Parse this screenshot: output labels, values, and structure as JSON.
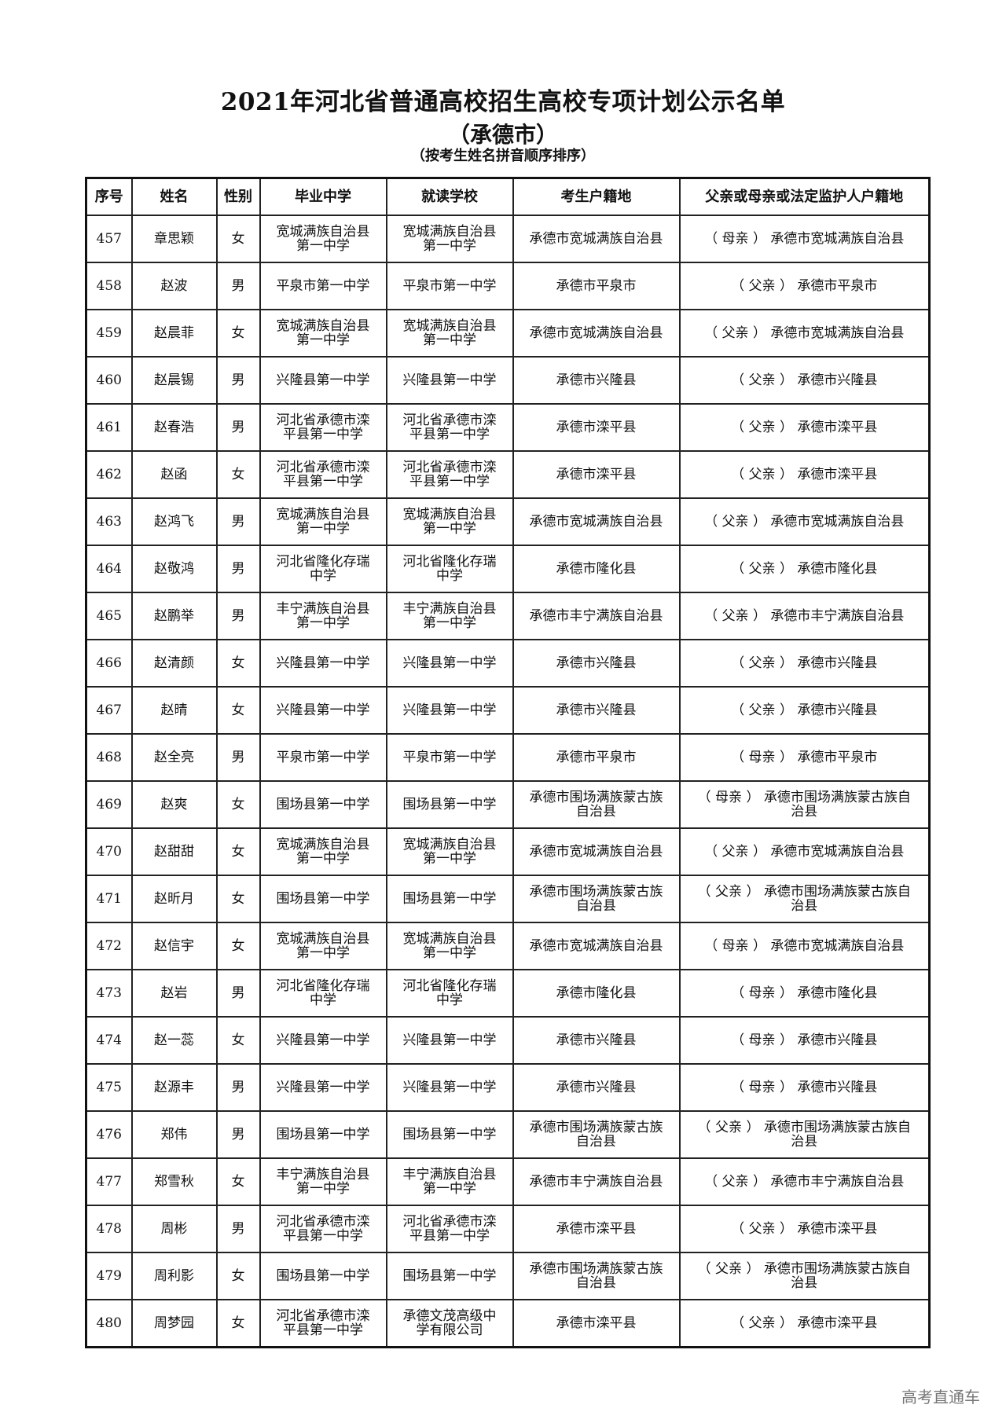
{
  "document": {
    "title": "2021年河北省普通高校招生高校专项计划公示名单",
    "subtitle": "（承德市）",
    "note": "（按考生姓名拼音顺序排序）",
    "watermark": "高考直通车"
  },
  "table": {
    "headers": [
      "序号",
      "姓名",
      "性别",
      "毕业中学",
      "就读学校",
      "考生户籍地",
      "父亲或母亲或法定监护人户籍地"
    ],
    "rows": [
      [
        "457",
        "章思颖",
        "女",
        "宽城满族自治县\n第一中学",
        "宽城满族自治县\n第一中学",
        "承德市宽城满族自治县",
        "（ 母亲 ） 承德市宽城满族自治县"
      ],
      [
        "458",
        "赵波",
        "男",
        "平泉市第一中学",
        "平泉市第一中学",
        "承德市平泉市",
        "（ 父亲 ） 承德市平泉市"
      ],
      [
        "459",
        "赵晨菲",
        "女",
        "宽城满族自治县\n第一中学",
        "宽城满族自治县\n第一中学",
        "承德市宽城满族自治县",
        "（ 父亲 ） 承德市宽城满族自治县"
      ],
      [
        "460",
        "赵晨锡",
        "男",
        "兴隆县第一中学",
        "兴隆县第一中学",
        "承德市兴隆县",
        "（ 父亲 ） 承德市兴隆县"
      ],
      [
        "461",
        "赵春浩",
        "男",
        "河北省承德市滦\n平县第一中学",
        "河北省承德市滦\n平县第一中学",
        "承德市滦平县",
        "（ 父亲 ） 承德市滦平县"
      ],
      [
        "462",
        "赵函",
        "女",
        "河北省承德市滦\n平县第一中学",
        "河北省承德市滦\n平县第一中学",
        "承德市滦平县",
        "（ 父亲 ） 承德市滦平县"
      ],
      [
        "463",
        "赵鸿飞",
        "男",
        "宽城满族自治县\n第一中学",
        "宽城满族自治县\n第一中学",
        "承德市宽城满族自治县",
        "（ 父亲 ） 承德市宽城满族自治县"
      ],
      [
        "464",
        "赵敬鸿",
        "男",
        "河北省隆化存瑞\n中学",
        "河北省隆化存瑞\n中学",
        "承德市隆化县",
        "（ 父亲 ） 承德市隆化县"
      ],
      [
        "465",
        "赵鹏举",
        "男",
        "丰宁满族自治县\n第一中学",
        "丰宁满族自治县\n第一中学",
        "承德市丰宁满族自治县",
        "（ 父亲 ） 承德市丰宁满族自治县"
      ],
      [
        "466",
        "赵清颜",
        "女",
        "兴隆县第一中学",
        "兴隆县第一中学",
        "承德市兴隆县",
        "（ 父亲 ） 承德市兴隆县"
      ],
      [
        "467",
        "赵晴",
        "女",
        "兴隆县第一中学",
        "兴隆县第一中学",
        "承德市兴隆县",
        "（ 父亲 ） 承德市兴隆县"
      ],
      [
        "468",
        "赵全亮",
        "男",
        "平泉市第一中学",
        "平泉市第一中学",
        "承德市平泉市",
        "（ 母亲 ） 承德市平泉市"
      ],
      [
        "469",
        "赵爽",
        "女",
        "围场县第一中学",
        "围场县第一中学",
        "承德市围场满族蒙古族\n自治县",
        "（ 母亲 ） 承德市围场满族蒙古族自\n治县"
      ],
      [
        "470",
        "赵甜甜",
        "女",
        "宽城满族自治县\n第一中学",
        "宽城满族自治县\n第一中学",
        "承德市宽城满族自治县",
        "（ 父亲 ） 承德市宽城满族自治县"
      ],
      [
        "471",
        "赵昕月",
        "女",
        "围场县第一中学",
        "围场县第一中学",
        "承德市围场满族蒙古族\n自治县",
        "（ 父亲 ） 承德市围场满族蒙古族自\n治县"
      ],
      [
        "472",
        "赵信宇",
        "女",
        "宽城满族自治县\n第一中学",
        "宽城满族自治县\n第一中学",
        "承德市宽城满族自治县",
        "（ 母亲 ） 承德市宽城满族自治县"
      ],
      [
        "473",
        "赵岩",
        "男",
        "河北省隆化存瑞\n中学",
        "河北省隆化存瑞\n中学",
        "承德市隆化县",
        "（ 母亲 ） 承德市隆化县"
      ],
      [
        "474",
        "赵一蕊",
        "女",
        "兴隆县第一中学",
        "兴隆县第一中学",
        "承德市兴隆县",
        "（ 母亲 ） 承德市兴隆县"
      ],
      [
        "475",
        "赵源丰",
        "男",
        "兴隆县第一中学",
        "兴隆县第一中学",
        "承德市兴隆县",
        "（ 母亲 ） 承德市兴隆县"
      ],
      [
        "476",
        "郑伟",
        "男",
        "围场县第一中学",
        "围场县第一中学",
        "承德市围场满族蒙古族\n自治县",
        "（ 父亲 ） 承德市围场满族蒙古族自\n治县"
      ],
      [
        "477",
        "郑雪秋",
        "女",
        "丰宁满族自治县\n第一中学",
        "丰宁满族自治县\n第一中学",
        "承德市丰宁满族自治县",
        "（ 父亲 ） 承德市丰宁满族自治县"
      ],
      [
        "478",
        "周彬",
        "男",
        "河北省承德市滦\n平县第一中学",
        "河北省承德市滦\n平县第一中学",
        "承德市滦平县",
        "（ 父亲 ） 承德市滦平县"
      ],
      [
        "479",
        "周利影",
        "女",
        "围场县第一中学",
        "围场县第一中学",
        "承德市围场满族蒙古族\n自治县",
        "（ 父亲 ） 承德市围场满族蒙古族自\n治县"
      ],
      [
        "480",
        "周梦园",
        "女",
        "河北省承德市滦\n平县第一中学",
        "承德文茂高级中\n学有限公司",
        "承德市滦平县",
        "（ 父亲 ） 承德市滦平县"
      ]
    ]
  }
}
